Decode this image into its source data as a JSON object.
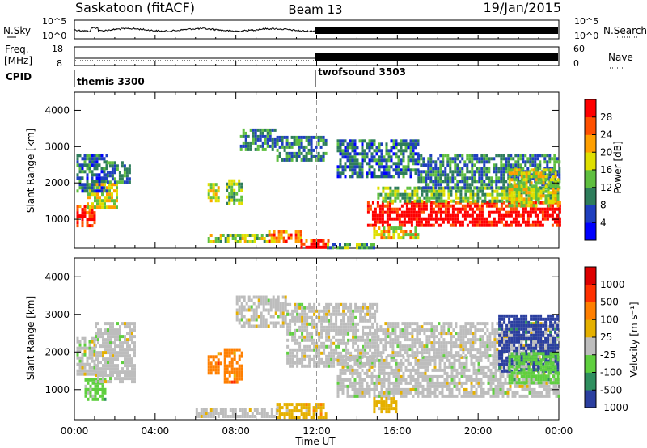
{
  "header": {
    "station": "Saskatoon (fitACF)",
    "beam": "Beam 13",
    "date": "19/Jan/2015"
  },
  "strip": {
    "nsky_label": "N.Sky",
    "nsky_ticks": [
      "10^5",
      "10^0"
    ],
    "nsearch_label": "N.Search",
    "nsearch_ticks": [
      "10^5",
      "10^0"
    ],
    "freq_label_line1": "Freq.",
    "freq_label_line2": "[MHz]",
    "freq_ticks": [
      "18",
      "8"
    ],
    "nave_label": "Nave",
    "nave_ticks": [
      "60",
      "0"
    ],
    "cpid_label": "CPID",
    "cpid_segments": [
      {
        "name": "themis 3300",
        "start_hour": 0,
        "end_hour": 12
      },
      {
        "name": "twofsound 3503",
        "start_hour": 12,
        "end_hour": 24
      }
    ]
  },
  "chart_data": [
    {
      "type": "heatmap",
      "title": "Power",
      "xlabel": "Time UT",
      "ylabel": "Slant Range [km]",
      "x_ticks": [
        "00:00",
        "04:00",
        "08:00",
        "12:00",
        "16:00",
        "20:00",
        "00:00"
      ],
      "xlim_hours": [
        0,
        24
      ],
      "y_ticks": [
        1000,
        2000,
        3000,
        4000
      ],
      "ylim": [
        200,
        4500
      ],
      "colorbar": {
        "label": "Power [dB]",
        "ticks": [
          "28",
          "24",
          "20",
          "16",
          "12",
          "8",
          "4"
        ],
        "range": [
          0,
          32
        ],
        "colors": [
          "#0000ff",
          "#1f3fbf",
          "#2e7d5b",
          "#5fbf3f",
          "#dfdf00",
          "#ff9f00",
          "#ff5000",
          "#ff0000"
        ]
      },
      "regions": [
        {
          "t0": 0.1,
          "t1": 1.0,
          "r0": 800,
          "r1": 1400,
          "level": 0.85
        },
        {
          "t0": 0.6,
          "t1": 2.1,
          "r0": 1300,
          "r1": 2000,
          "level": 0.55
        },
        {
          "t0": 0.1,
          "t1": 1.6,
          "r0": 1800,
          "r1": 2800,
          "level": 0.25
        },
        {
          "t0": 1.6,
          "t1": 2.7,
          "r0": 2000,
          "r1": 2600,
          "level": 0.3
        },
        {
          "t0": 6.6,
          "t1": 7.2,
          "r0": 1500,
          "r1": 2000,
          "level": 0.55
        },
        {
          "t0": 7.5,
          "t1": 8.3,
          "r0": 1400,
          "r1": 2100,
          "level": 0.45
        },
        {
          "t0": 6.6,
          "t1": 9.6,
          "r0": 400,
          "r1": 600,
          "level": 0.5
        },
        {
          "t0": 9.6,
          "t1": 11.2,
          "r0": 350,
          "r1": 700,
          "level": 0.75
        },
        {
          "t0": 11.2,
          "t1": 12.6,
          "r0": 250,
          "r1": 450,
          "level": 0.85
        },
        {
          "t0": 8.2,
          "t1": 10.0,
          "r0": 2900,
          "r1": 3500,
          "level": 0.3
        },
        {
          "t0": 10.0,
          "t1": 12.5,
          "r0": 2600,
          "r1": 3300,
          "level": 0.3
        },
        {
          "t0": 13.0,
          "t1": 17.0,
          "r0": 2200,
          "r1": 3200,
          "level": 0.25
        },
        {
          "t0": 14.5,
          "t1": 24.0,
          "r0": 800,
          "r1": 1500,
          "level": 0.9
        },
        {
          "t0": 15.0,
          "t1": 24.0,
          "r0": 1500,
          "r1": 1900,
          "level": 0.45
        },
        {
          "t0": 17.0,
          "t1": 24.0,
          "r0": 1900,
          "r1": 2800,
          "level": 0.3
        },
        {
          "t0": 21.5,
          "t1": 24.0,
          "r0": 1400,
          "r1": 2400,
          "level": 0.55
        },
        {
          "t0": 14.8,
          "t1": 17.0,
          "r0": 500,
          "r1": 800,
          "level": 0.6
        },
        {
          "t0": 12.5,
          "t1": 14.8,
          "r0": 200,
          "r1": 350,
          "level": 0.35
        }
      ]
    },
    {
      "type": "heatmap",
      "title": "Velocity",
      "xlabel": "Time UT",
      "ylabel": "Slant Range [km]",
      "x_ticks": [
        "00:00",
        "04:00",
        "08:00",
        "12:00",
        "16:00",
        "20:00",
        "00:00"
      ],
      "xlim_hours": [
        0,
        24
      ],
      "y_ticks": [
        1000,
        2000,
        3000,
        4000
      ],
      "ylim": [
        200,
        4500
      ],
      "colorbar": {
        "label": "Velocity [m s⁻¹]",
        "ticks": [
          "1000",
          "500",
          "100",
          "25",
          "-25",
          "-100",
          "-500",
          "-1000"
        ],
        "colors": [
          "#2b3fa0",
          "#2f8f5f",
          "#5fcf3f",
          "#bdbdbd",
          "#e5b000",
          "#ff7f00",
          "#ff3000",
          "#dd0000"
        ]
      },
      "regions": [
        {
          "t0": 0.1,
          "t1": 1.0,
          "r0": 1400,
          "r1": 2400,
          "cls": 3
        },
        {
          "t0": 0.5,
          "t1": 1.5,
          "r0": 700,
          "r1": 1300,
          "cls": 2
        },
        {
          "t0": 1.0,
          "t1": 3.0,
          "r0": 1200,
          "r1": 2800,
          "cls": 3
        },
        {
          "t0": 6.6,
          "t1": 7.3,
          "r0": 1400,
          "r1": 2000,
          "cls": 5
        },
        {
          "t0": 7.4,
          "t1": 8.3,
          "r0": 1200,
          "r1": 2100,
          "cls": 5
        },
        {
          "t0": 6.0,
          "t1": 10.0,
          "r0": 250,
          "r1": 500,
          "cls": 3
        },
        {
          "t0": 10.0,
          "t1": 12.5,
          "r0": 250,
          "r1": 650,
          "cls": 4
        },
        {
          "t0": 8.0,
          "t1": 10.5,
          "r0": 2700,
          "r1": 3500,
          "cls": 3
        },
        {
          "t0": 10.5,
          "t1": 15.0,
          "r0": 1600,
          "r1": 3300,
          "cls": 3
        },
        {
          "t0": 13.0,
          "t1": 24.0,
          "r0": 800,
          "r1": 1900,
          "cls": 3
        },
        {
          "t0": 15.0,
          "t1": 24.0,
          "r0": 1900,
          "r1": 2800,
          "cls": 3
        },
        {
          "t0": 14.8,
          "t1": 16.0,
          "r0": 400,
          "r1": 800,
          "cls": 4
        },
        {
          "t0": 21.0,
          "t1": 24.0,
          "r0": 1500,
          "r1": 3000,
          "cls": 0
        },
        {
          "t0": 21.5,
          "t1": 24.0,
          "r0": 1200,
          "r1": 2000,
          "cls": 2
        }
      ]
    }
  ]
}
